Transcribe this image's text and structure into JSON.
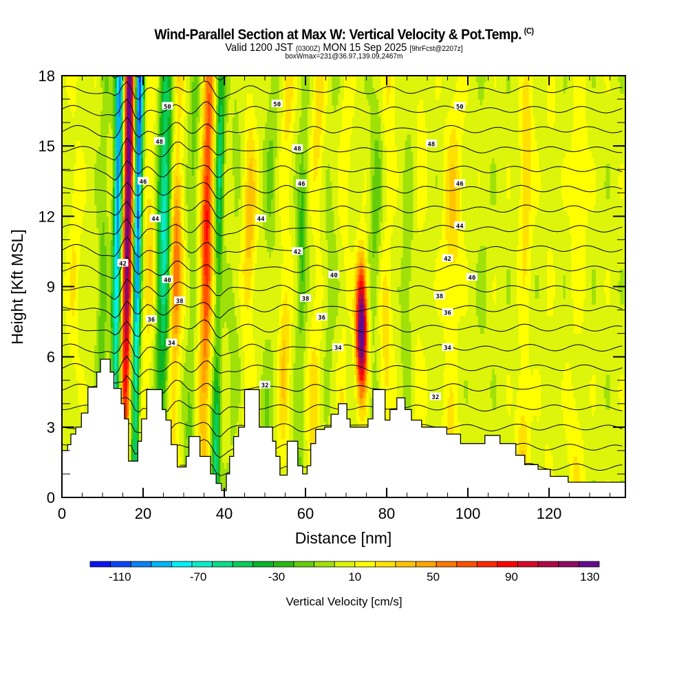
{
  "header": {
    "title": "Wind-Parallel Section at Max W: Vertical Velocity & Pot.Temp.",
    "title_suffix": "(C)",
    "valid_prefix": "Valid 1200 JST",
    "valid_utc": "(0300Z)",
    "valid_date": "MON 15 Sep 2025",
    "forecast": "[9hrFcst@2207z]",
    "box_info": "boxWmax=231@36.97,139.09,2467m"
  },
  "chart_data": {
    "type": "heatmap",
    "title": "Wind-Parallel Section at Max W: Vertical Velocity & Pot.Temp.",
    "xlabel": "Distance [nm]",
    "ylabel": "Height [Kft MSL]",
    "xlim": [
      0,
      138.8
    ],
    "ylim": [
      0,
      18
    ],
    "x_ticks": [
      0,
      20,
      40,
      60,
      80,
      100,
      120
    ],
    "x_minor_step": 5,
    "y_ticks": [
      0,
      3,
      6,
      9,
      12,
      15,
      18
    ],
    "y_minor_step": 1,
    "fill_variable": "Vertical Velocity",
    "fill_units": "cm/s",
    "colorbar": {
      "label": "Vertical Velocity [cm/s]",
      "placement": "bottom",
      "tick_labels": [
        "-110",
        "-70",
        "-30",
        "10",
        "50",
        "90",
        "130"
      ],
      "tick_values": [
        -110,
        -70,
        -30,
        10,
        50,
        90,
        130
      ],
      "bins": [
        -120,
        -110,
        -100,
        -90,
        -80,
        -70,
        -60,
        -50,
        -40,
        -30,
        -20,
        -10,
        0,
        10,
        20,
        30,
        40,
        50,
        60,
        70,
        80,
        90,
        100,
        110,
        120,
        130,
        140
      ],
      "colors": [
        "#0a14f0",
        "#0a46f5",
        "#0a82f5",
        "#00b4f5",
        "#00f0f5",
        "#0aebc8",
        "#0adc8c",
        "#0acd5a",
        "#0ab428",
        "#28b90f",
        "#64cd0a",
        "#a0e10a",
        "#dcf50a",
        "#ffff00",
        "#ffe100",
        "#ffc300",
        "#ffa500",
        "#ff7800",
        "#ff5000",
        "#ff2800",
        "#ff0000",
        "#d70a28",
        "#af0a46",
        "#8c0a64",
        "#640a8c"
      ]
    },
    "contour_variable": "Potential Temperature",
    "contour_interval": 1,
    "contour_labels": [
      {
        "value": 50,
        "x": 26,
        "y": 16.7
      },
      {
        "value": 50,
        "x": 53,
        "y": 16.8
      },
      {
        "value": 50,
        "x": 98,
        "y": 16.7
      },
      {
        "value": 48,
        "x": 24,
        "y": 15.2
      },
      {
        "value": 48,
        "x": 58,
        "y": 14.9
      },
      {
        "value": 48,
        "x": 91,
        "y": 15.1
      },
      {
        "value": 46,
        "x": 20,
        "y": 13.5
      },
      {
        "value": 46,
        "x": 59,
        "y": 13.4
      },
      {
        "value": 46,
        "x": 98,
        "y": 13.4
      },
      {
        "value": 44,
        "x": 23,
        "y": 11.9
      },
      {
        "value": 44,
        "x": 49,
        "y": 11.9
      },
      {
        "value": 44,
        "x": 98,
        "y": 11.6
      },
      {
        "value": 42,
        "x": 15,
        "y": 10.0
      },
      {
        "value": 42,
        "x": 58,
        "y": 10.5
      },
      {
        "value": 42,
        "x": 95,
        "y": 10.2
      },
      {
        "value": 40,
        "x": 26,
        "y": 9.3
      },
      {
        "value": 40,
        "x": 67,
        "y": 9.5
      },
      {
        "value": 40,
        "x": 101,
        "y": 9.4
      },
      {
        "value": 38,
        "x": 29,
        "y": 8.4
      },
      {
        "value": 38,
        "x": 60,
        "y": 8.5
      },
      {
        "value": 38,
        "x": 93,
        "y": 8.6
      },
      {
        "value": 36,
        "x": 22,
        "y": 7.6
      },
      {
        "value": 36,
        "x": 64,
        "y": 7.7
      },
      {
        "value": 36,
        "x": 95,
        "y": 7.9
      },
      {
        "value": 34,
        "x": 27,
        "y": 6.6
      },
      {
        "value": 34,
        "x": 68,
        "y": 6.4
      },
      {
        "value": 34,
        "x": 95,
        "y": 6.4
      },
      {
        "value": 32,
        "x": 50,
        "y": 4.8
      },
      {
        "value": 32,
        "x": 92,
        "y": 4.3
      }
    ],
    "theta_surface": 31,
    "theta_top": 51.5,
    "velocity_bands": [
      {
        "x": 3,
        "w": 1.5,
        "v": 15
      },
      {
        "x": 10,
        "w": 1.2,
        "v": -25
      },
      {
        "x": 13.5,
        "w": 1.0,
        "v": -100
      },
      {
        "x": 16,
        "w": 1.1,
        "v": 130
      },
      {
        "x": 18.5,
        "w": 0.9,
        "v": -110
      },
      {
        "x": 21.5,
        "w": 1.4,
        "v": 25
      },
      {
        "x": 25,
        "w": 1.6,
        "v": -75
      },
      {
        "x": 28,
        "w": 1.4,
        "v": 55
      },
      {
        "x": 32,
        "w": 1.3,
        "v": -20
      },
      {
        "x": 35.5,
        "w": 1.4,
        "v": 80
      },
      {
        "x": 38.5,
        "w": 1.0,
        "v": -60
      },
      {
        "x": 42.5,
        "w": 1.5,
        "v": -10
      },
      {
        "x": 46,
        "w": 1.6,
        "v": 30
      },
      {
        "x": 51,
        "w": 1.5,
        "v": -15
      },
      {
        "x": 55,
        "w": 1.4,
        "v": 25
      },
      {
        "x": 59,
        "w": 1.2,
        "v": -30
      },
      {
        "x": 62.5,
        "w": 1.6,
        "v": 20
      },
      {
        "x": 66,
        "w": 1.5,
        "v": -10
      },
      {
        "x": 69.5,
        "w": 1.3,
        "v": 15
      },
      {
        "x": 77,
        "w": 1.4,
        "v": -20
      },
      {
        "x": 80,
        "w": 1.5,
        "v": 20
      },
      {
        "x": 85,
        "w": 1.3,
        "v": -15
      },
      {
        "x": 88,
        "w": 1.5,
        "v": 10
      },
      {
        "x": 96,
        "w": 2.2,
        "v": 25
      },
      {
        "x": 104,
        "w": 1.6,
        "v": -5
      },
      {
        "x": 114,
        "w": 1.6,
        "v": 25
      },
      {
        "x": 120,
        "w": 1.8,
        "v": 5
      },
      {
        "x": 127,
        "w": 2.0,
        "v": 15
      }
    ],
    "updraft_cells": [
      {
        "x": 73.8,
        "z": 7.2,
        "w": 1.3,
        "h": 2.6,
        "v": 140
      }
    ],
    "terrain": [
      [
        0,
        2.0
      ],
      [
        1.4,
        2.0
      ],
      [
        1.4,
        2.25
      ],
      [
        2.2,
        2.25
      ],
      [
        2.2,
        2.7
      ],
      [
        3.4,
        2.7
      ],
      [
        3.4,
        3.0
      ],
      [
        4.8,
        3.0
      ],
      [
        4.8,
        3.6
      ],
      [
        6.4,
        3.6
      ],
      [
        6.4,
        4.7
      ],
      [
        8.6,
        4.7
      ],
      [
        8.6,
        5.35
      ],
      [
        9.5,
        5.35
      ],
      [
        9.5,
        5.9
      ],
      [
        11.9,
        5.9
      ],
      [
        11.9,
        5.35
      ],
      [
        12.8,
        5.35
      ],
      [
        12.8,
        4.65
      ],
      [
        14.6,
        4.65
      ],
      [
        14.6,
        4.0
      ],
      [
        15.4,
        4.0
      ],
      [
        15.4,
        3.35
      ],
      [
        16.4,
        3.35
      ],
      [
        16.4,
        1.55
      ],
      [
        18.7,
        1.55
      ],
      [
        18.7,
        2.4
      ],
      [
        19.6,
        2.4
      ],
      [
        19.6,
        3.35
      ],
      [
        20.9,
        3.35
      ],
      [
        20.9,
        4.6
      ],
      [
        24.7,
        4.6
      ],
      [
        24.7,
        3.75
      ],
      [
        25.6,
        3.75
      ],
      [
        25.6,
        3.3
      ],
      [
        26.9,
        3.3
      ],
      [
        26.9,
        2.25
      ],
      [
        28.4,
        2.25
      ],
      [
        28.4,
        1.3
      ],
      [
        30.6,
        1.3
      ],
      [
        30.6,
        1.75
      ],
      [
        31.3,
        1.75
      ],
      [
        31.3,
        2.6
      ],
      [
        34.0,
        2.6
      ],
      [
        34.0,
        1.75
      ],
      [
        36.6,
        1.75
      ],
      [
        36.6,
        1.0
      ],
      [
        38.0,
        1.0
      ],
      [
        38.0,
        0.6
      ],
      [
        39.3,
        0.6
      ],
      [
        39.3,
        0.3
      ],
      [
        40.5,
        0.3
      ],
      [
        40.5,
        1.0
      ],
      [
        41.3,
        1.0
      ],
      [
        41.3,
        1.75
      ],
      [
        42.3,
        1.75
      ],
      [
        42.3,
        2.6
      ],
      [
        43.5,
        2.6
      ],
      [
        43.5,
        3.0
      ],
      [
        45.0,
        3.0
      ],
      [
        45.0,
        4.6
      ],
      [
        48.6,
        4.6
      ],
      [
        48.6,
        3.0
      ],
      [
        51.9,
        3.0
      ],
      [
        51.9,
        2.4
      ],
      [
        52.7,
        2.4
      ],
      [
        52.7,
        1.75
      ],
      [
        53.7,
        1.75
      ],
      [
        53.7,
        0.95
      ],
      [
        55.5,
        0.95
      ],
      [
        55.5,
        2.4
      ],
      [
        58.1,
        2.4
      ],
      [
        58.1,
        1.35
      ],
      [
        59.3,
        1.35
      ],
      [
        59.3,
        1.0
      ],
      [
        60.4,
        1.0
      ],
      [
        60.4,
        1.35
      ],
      [
        61.3,
        1.35
      ],
      [
        61.3,
        2.3
      ],
      [
        62.5,
        2.3
      ],
      [
        62.5,
        2.9
      ],
      [
        64.7,
        2.9
      ],
      [
        64.7,
        3.0
      ],
      [
        66.3,
        3.0
      ],
      [
        66.3,
        3.55
      ],
      [
        68.1,
        3.55
      ],
      [
        68.1,
        4.0
      ],
      [
        70.2,
        4.0
      ],
      [
        70.2,
        3.35
      ],
      [
        71.0,
        3.35
      ],
      [
        71.0,
        3.0
      ],
      [
        75.4,
        3.0
      ],
      [
        75.4,
        3.35
      ],
      [
        76.6,
        3.35
      ],
      [
        76.6,
        4.6
      ],
      [
        79.6,
        4.6
      ],
      [
        79.6,
        3.3
      ],
      [
        80.8,
        3.3
      ],
      [
        80.8,
        3.75
      ],
      [
        82.5,
        3.75
      ],
      [
        82.5,
        4.25
      ],
      [
        84.5,
        4.25
      ],
      [
        84.5,
        3.75
      ],
      [
        86.1,
        3.75
      ],
      [
        86.1,
        3.3
      ],
      [
        88.6,
        3.3
      ],
      [
        88.6,
        3.0
      ],
      [
        94.8,
        3.0
      ],
      [
        94.8,
        2.7
      ],
      [
        98.2,
        2.7
      ],
      [
        98.2,
        2.3
      ],
      [
        104.2,
        2.3
      ],
      [
        104.2,
        2.65
      ],
      [
        107.9,
        2.65
      ],
      [
        107.9,
        2.3
      ],
      [
        111.8,
        2.3
      ],
      [
        111.8,
        1.8
      ],
      [
        114.0,
        1.8
      ],
      [
        114.0,
        1.4
      ],
      [
        117.3,
        1.4
      ],
      [
        117.3,
        1.2
      ],
      [
        120.3,
        1.2
      ],
      [
        120.3,
        0.9
      ],
      [
        124.7,
        0.9
      ],
      [
        124.7,
        0.65
      ],
      [
        138.8,
        0.65
      ]
    ]
  }
}
